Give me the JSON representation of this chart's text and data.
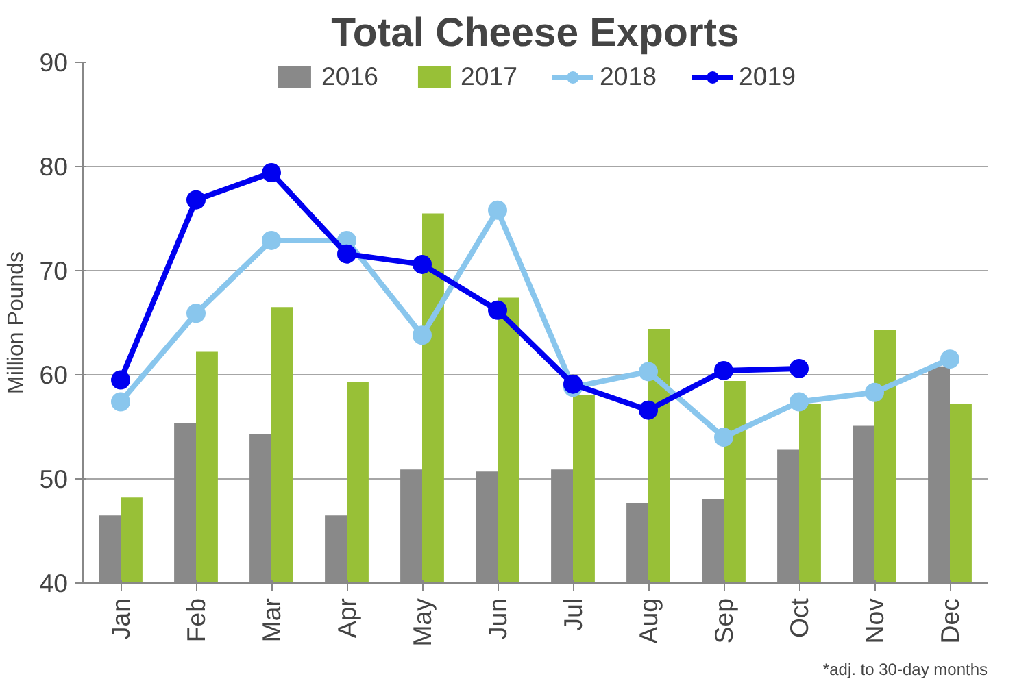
{
  "chart_data": {
    "type": "bar",
    "title": "Total Cheese Exports",
    "ylabel": "Million Pounds",
    "categories": [
      "Jan",
      "Feb",
      "Mar",
      "Apr",
      "May",
      "Jun",
      "Jul",
      "Aug",
      "Sep",
      "Oct",
      "Nov",
      "Dec"
    ],
    "series": [
      {
        "name": "2016",
        "color": "#898989",
        "values": [
          46.5,
          55.4,
          54.3,
          46.5,
          50.9,
          50.7,
          50.9,
          47.7,
          48.1,
          52.8,
          55.1,
          60.8
        ]
      },
      {
        "name": "2017",
        "color": "#98c037",
        "values": [
          48.2,
          62.2,
          66.5,
          59.3,
          75.5,
          67.4,
          58.1,
          64.4,
          59.4,
          57.2,
          64.3,
          57.2
        ]
      },
      {
        "name": "2018",
        "type": "line",
        "color": "#89c6ed",
        "values": [
          57.4,
          65.9,
          72.9,
          72.9,
          63.8,
          75.8,
          58.8,
          60.3,
          54.0,
          57.4,
          58.3,
          61.5
        ]
      },
      {
        "name": "2019",
        "type": "line",
        "color": "#0000f0",
        "values": [
          59.5,
          76.8,
          79.4,
          71.6,
          70.6,
          66.2,
          59.1,
          56.6,
          60.4,
          60.6,
          null,
          null
        ]
      }
    ],
    "ylim": [
      40,
      90
    ],
    "yticks": [
      40,
      50,
      60,
      70,
      80,
      90
    ],
    "grid": "y",
    "legend": "top",
    "marker": "circle",
    "line_style": "solid",
    "annotations": [
      "*adj. to 30-day months"
    ]
  }
}
